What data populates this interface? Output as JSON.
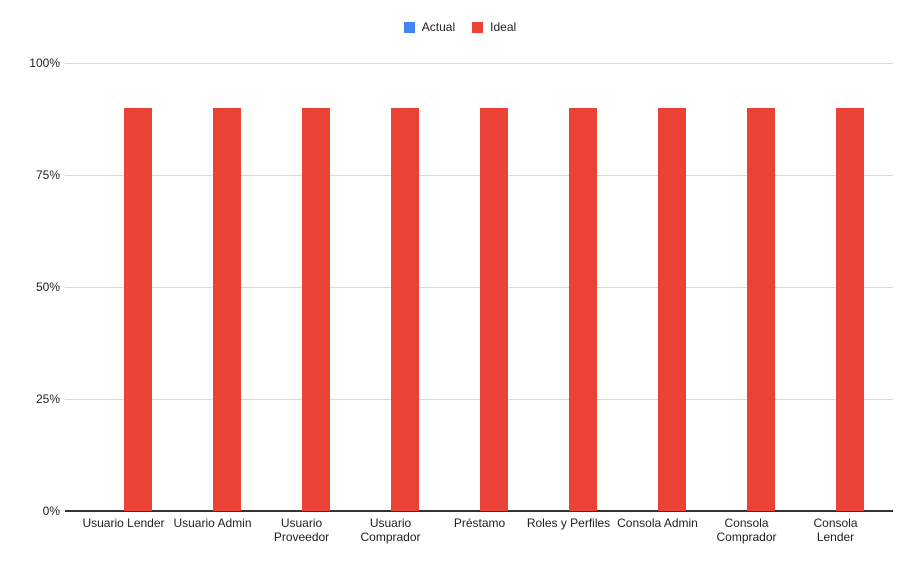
{
  "legend": {
    "items": [
      {
        "label": "Actual",
        "color": "#4285F4"
      },
      {
        "label": "Ideal",
        "color": "#EA4335"
      }
    ]
  },
  "colors": {
    "grid": "#d9d9d9",
    "axis": "#333333",
    "text": "#202124",
    "background": "#ffffff"
  },
  "chart_data": {
    "type": "bar",
    "title": "",
    "xlabel": "",
    "ylabel": "",
    "categories": [
      "Usuario Lender",
      "Usuario Admin",
      "Usuario Proveedor",
      "Usuario Comprador",
      "Préstamo",
      "Roles y Perfiles",
      "Consola Admin",
      "Consola Comprador",
      "Consola Lender"
    ],
    "category_display": [
      "Usuario Lender",
      "Usuario Admin",
      "Usuario\nProveedor",
      "Usuario\nComprador",
      "Préstamo",
      "Roles y Perfiles",
      "Consola Admin",
      "Consola\nComprador",
      "Consola\nLender"
    ],
    "series": [
      {
        "name": "Actual",
        "color": "#4285F4",
        "values": [
          0,
          0,
          0,
          0,
          0,
          0,
          0,
          0,
          0
        ]
      },
      {
        "name": "Ideal",
        "color": "#EA4335",
        "values": [
          90,
          90,
          90,
          90,
          90,
          90,
          90,
          90,
          90
        ]
      }
    ],
    "y_ticks": [
      {
        "label": "0%",
        "value": 0
      },
      {
        "label": "25%",
        "value": 25
      },
      {
        "label": "50%",
        "value": 50
      },
      {
        "label": "75%",
        "value": 75
      },
      {
        "label": "100%",
        "value": 100
      }
    ],
    "ylim": [
      0,
      100
    ],
    "grid": true,
    "legend_position": "top"
  }
}
